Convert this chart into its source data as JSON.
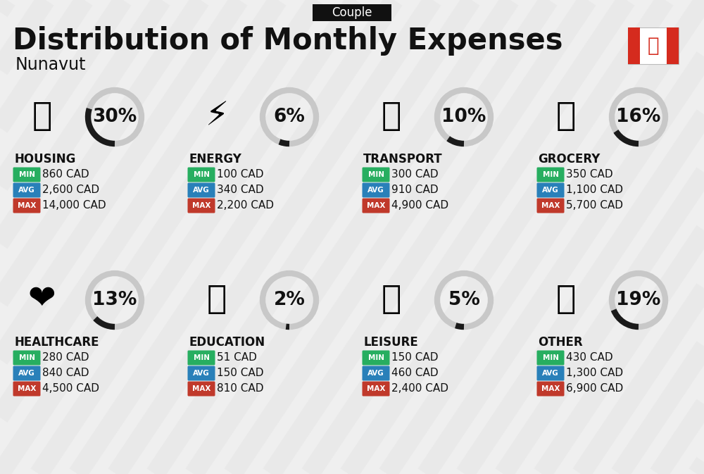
{
  "title": "Distribution of Monthly Expenses",
  "subtitle": "Nunavut",
  "badge": "Couple",
  "bg_color": "#efefef",
  "stripe_color": "#e5e5e5",
  "categories": [
    {
      "name": "HOUSING",
      "pct": 30,
      "min": "860 CAD",
      "avg": "2,600 CAD",
      "max": "14,000 CAD"
    },
    {
      "name": "ENERGY",
      "pct": 6,
      "min": "100 CAD",
      "avg": "340 CAD",
      "max": "2,200 CAD"
    },
    {
      "name": "TRANSPORT",
      "pct": 10,
      "min": "300 CAD",
      "avg": "910 CAD",
      "max": "4,900 CAD"
    },
    {
      "name": "GROCERY",
      "pct": 16,
      "min": "350 CAD",
      "avg": "1,100 CAD",
      "max": "5,700 CAD"
    },
    {
      "name": "HEALTHCARE",
      "pct": 13,
      "min": "280 CAD",
      "avg": "840 CAD",
      "max": "4,500 CAD"
    },
    {
      "name": "EDUCATION",
      "pct": 2,
      "min": "51 CAD",
      "avg": "150 CAD",
      "max": "810 CAD"
    },
    {
      "name": "LEISURE",
      "pct": 5,
      "min": "150 CAD",
      "avg": "460 CAD",
      "max": "2,400 CAD"
    },
    {
      "name": "OTHER",
      "pct": 19,
      "min": "430 CAD",
      "avg": "1,300 CAD",
      "max": "6,900 CAD"
    }
  ],
  "min_color": "#27ae60",
  "avg_color": "#2980b9",
  "max_color": "#c0392b",
  "label_fg": "#ffffff",
  "text_color": "#111111",
  "donut_dark": "#1a1a1a",
  "donut_light": "#c8c8c8",
  "title_fontsize": 30,
  "subtitle_fontsize": 17,
  "badge_fontsize": 12,
  "cat_fontsize": 12,
  "val_fontsize": 11,
  "pct_fontsize": 19,
  "icon_fontsize": 34
}
